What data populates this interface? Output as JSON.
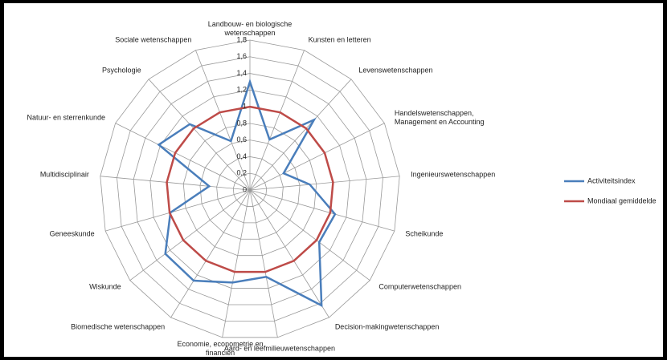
{
  "chart_data": {
    "type": "radar",
    "categories": [
      "Landbouw- en biologische wetenschappen",
      "Kunsten en letteren",
      "Levenswetenschappen",
      "Handelswetenschappen, Management en Accounting",
      "Ingenieurswetenschappen",
      "Scheikunde",
      "Computerwetenschappen",
      "Decision-makingwetenschappen",
      "Aard- en leefmilieuwetenschappen",
      "Economie, econometrie en financiën",
      "Biomedische wetenschappen",
      "Wiskunde",
      "Geneeskunde",
      "Multidisciplinair",
      "Natuur- en sterrenkunde",
      "Psychologie",
      "Sociale wetenschappen"
    ],
    "series": [
      {
        "name": "Activiteitsindex",
        "color": "#4a7ebb",
        "values": [
          1.3,
          0.65,
          1.14,
          0.45,
          0.72,
          1.06,
          1.04,
          1.63,
          1.06,
          1.13,
          1.28,
          1.27,
          0.99,
          0.49,
          1.22,
          1.07,
          0.63
        ]
      },
      {
        "name": "Mondiaal gemiddelde",
        "color": "#be4b48",
        "values": [
          1,
          1,
          1,
          1,
          1,
          1,
          1,
          1,
          1,
          1,
          1,
          1,
          1,
          1,
          1,
          1,
          1
        ]
      }
    ],
    "ylim": [
      0,
      1.8
    ],
    "yticks": [
      0,
      {
        "value": 0.2,
        "label": "0,2"
      },
      {
        "value": 0.4,
        "label": "0,4"
      },
      {
        "value": 0.6,
        "label": "0,6"
      },
      {
        "value": 0.8,
        "label": "0,8"
      },
      1,
      {
        "value": 1.2,
        "label": "1,2"
      },
      {
        "value": 1.4,
        "label": "1,4"
      },
      {
        "value": 1.6,
        "label": "1,6"
      },
      {
        "value": 1.8,
        "label": "1,8"
      }
    ],
    "legend": "right"
  }
}
